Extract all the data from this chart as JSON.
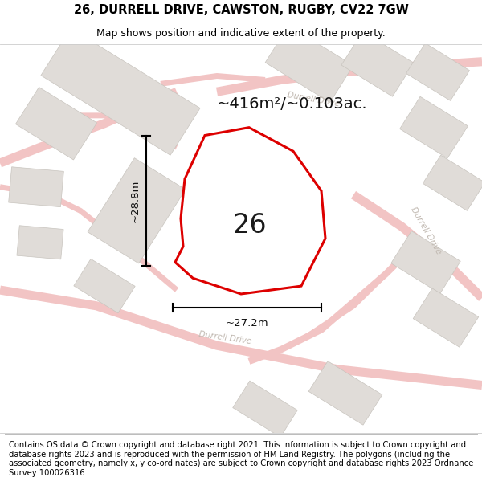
{
  "title": "26, DURRELL DRIVE, CAWSTON, RUGBY, CV22 7GW",
  "subtitle": "Map shows position and indicative extent of the property.",
  "footer": "Contains OS data © Crown copyright and database right 2021. This information is subject to Crown copyright and database rights 2023 and is reproduced with the permission of HM Land Registry. The polygons (including the associated geometry, namely x, y co-ordinates) are subject to Crown copyright and database rights 2023 Ordnance Survey 100026316.",
  "area_label": "~416m²/~0.103ac.",
  "width_label": "~27.2m",
  "height_label": "~28.8m",
  "plot_number": "26",
  "map_bg": "#f7f5f3",
  "road_color": "#f2c4c4",
  "road_outline": "#e8b0b0",
  "building_color": "#e0dcd8",
  "building_edge": "#c8c4be",
  "plot_fill": "#ffffff",
  "plot_edge": "#dd0000",
  "plot_edge_width": 2.2,
  "title_fontsize": 10.5,
  "subtitle_fontsize": 9,
  "footer_fontsize": 7.2,
  "area_fontsize": 14,
  "plot_num_fontsize": 24,
  "measure_fontsize": 9.5
}
